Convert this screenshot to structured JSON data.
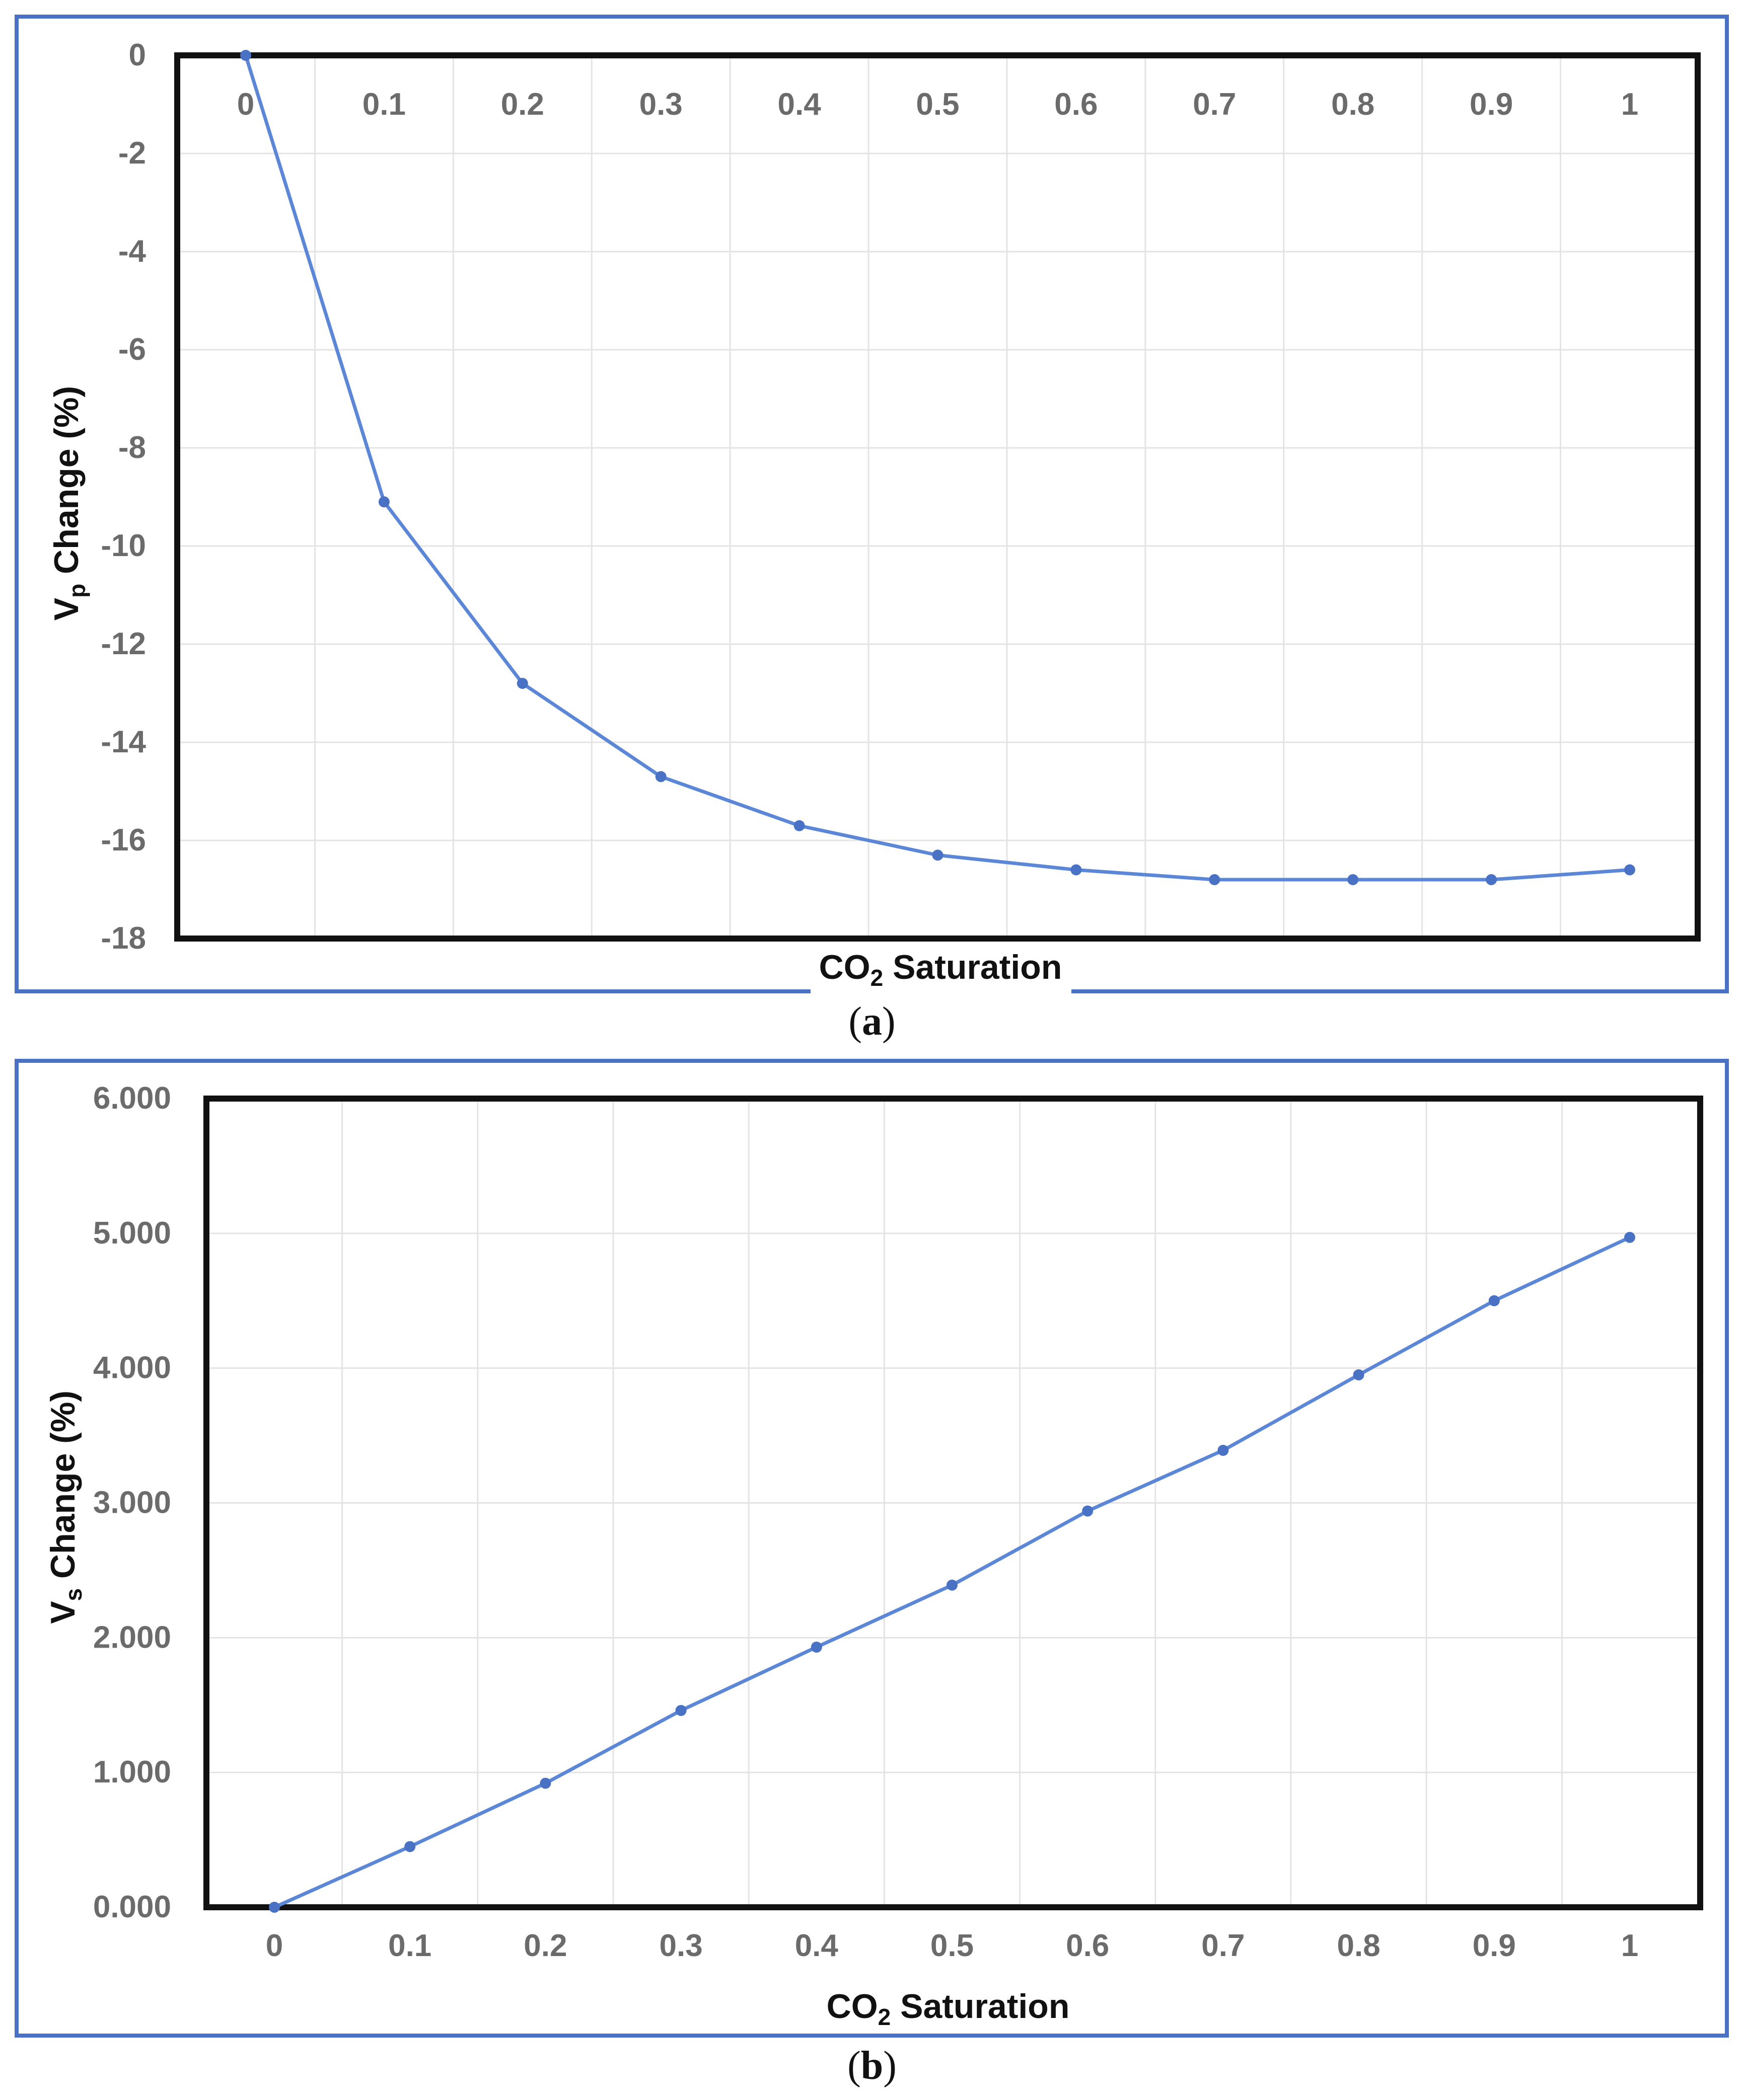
{
  "chart_data": [
    {
      "type": "line",
      "panel_label": "a",
      "xlabel_main": "CO",
      "xlabel_sub": "2",
      "xlabel_rest": " Saturation",
      "ylabel_main": "V",
      "ylabel_sub": "p",
      "ylabel_rest": " Change (%)",
      "x_tick_labels": [
        "0",
        "0.1",
        "0.2",
        "0.3",
        "0.4",
        "0.5",
        "0.6",
        "0.7",
        "0.8",
        "0.9",
        "1"
      ],
      "y_tick_labels": [
        "0",
        "-2",
        "-4",
        "-6",
        "-8",
        "-10",
        "-12",
        "-14",
        "-16",
        "-18"
      ],
      "ylim": [
        -18,
        0
      ],
      "xlim": [
        0,
        1
      ],
      "series": [
        {
          "name": "Vp Change",
          "color": "#5b87d6",
          "x": [
            0,
            0.1,
            0.2,
            0.3,
            0.4,
            0.5,
            0.6,
            0.7,
            0.8,
            0.9,
            1
          ],
          "values": [
            0,
            -9.1,
            -12.8,
            -14.7,
            -15.7,
            -16.3,
            -16.6,
            -16.8,
            -16.8,
            -16.8,
            -16.6
          ]
        }
      ],
      "grid": true,
      "accent_color": "#4a72c4"
    },
    {
      "type": "line",
      "panel_label": "b",
      "xlabel_main": "CO",
      "xlabel_sub": "2",
      "xlabel_rest": " Saturation",
      "ylabel_main": "V",
      "ylabel_sub": "s",
      "ylabel_rest": " Change (%)",
      "x_tick_labels": [
        "0",
        "0.1",
        "0.2",
        "0.3",
        "0.4",
        "0.5",
        "0.6",
        "0.7",
        "0.8",
        "0.9",
        "1"
      ],
      "y_tick_labels": [
        "0.000",
        "1.000",
        "2.000",
        "3.000",
        "4.000",
        "5.000",
        "6.000"
      ],
      "ylim": [
        0,
        6
      ],
      "xlim": [
        0,
        1
      ],
      "series": [
        {
          "name": "Vs Change",
          "color": "#5b87d6",
          "x": [
            0,
            0.1,
            0.2,
            0.3,
            0.4,
            0.5,
            0.6,
            0.7,
            0.8,
            0.9,
            1
          ],
          "values": [
            0,
            0.45,
            0.92,
            1.46,
            1.93,
            2.39,
            2.94,
            3.39,
            3.95,
            4.5,
            4.97
          ]
        }
      ],
      "grid": true,
      "accent_color": "#4a72c4"
    }
  ]
}
